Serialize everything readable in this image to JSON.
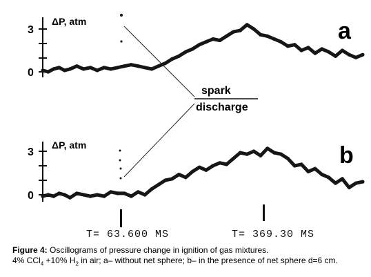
{
  "chart_data": [
    {
      "type": "line",
      "panel_label": "a",
      "ylabel": "ΔP, atm",
      "y_ticks": [
        "0",
        "3"
      ],
      "ylim": [
        -1,
        4
      ],
      "x": [
        0,
        8,
        16,
        24,
        32,
        40,
        50,
        60,
        70,
        80,
        90,
        100,
        110,
        120,
        130,
        140,
        150,
        160,
        170,
        180,
        190,
        200,
        210,
        220,
        230,
        240,
        250,
        260,
        270,
        280,
        290,
        300,
        310,
        320,
        330,
        340,
        350,
        360,
        370,
        380,
        390,
        400,
        410,
        420,
        430,
        440,
        450,
        460,
        470
      ],
      "values": [
        0.1,
        0.0,
        0.2,
        0.3,
        0.1,
        0.2,
        0.4,
        0.2,
        0.3,
        0.1,
        0.3,
        0.2,
        0.3,
        0.4,
        0.5,
        0.4,
        0.3,
        0.2,
        0.4,
        0.6,
        0.9,
        1.1,
        1.4,
        1.6,
        1.9,
        2.1,
        2.3,
        2.2,
        2.5,
        2.8,
        2.9,
        3.3,
        3.0,
        2.6,
        2.5,
        2.3,
        2.1,
        1.8,
        1.9,
        1.5,
        1.7,
        1.3,
        1.6,
        1.4,
        1.1,
        1.5,
        1.2,
        1.0,
        1.2
      ]
    },
    {
      "type": "line",
      "panel_label": "b",
      "ylabel": "ΔP, atm",
      "y_ticks": [
        "0",
        "3"
      ],
      "ylim": [
        -1,
        4
      ],
      "x": [
        0,
        8,
        16,
        24,
        32,
        40,
        50,
        60,
        70,
        80,
        90,
        100,
        110,
        120,
        130,
        140,
        150,
        160,
        170,
        180,
        190,
        200,
        210,
        220,
        230,
        240,
        250,
        260,
        270,
        280,
        290,
        300,
        310,
        320,
        330,
        340,
        350,
        360,
        370,
        380,
        390,
        400,
        410,
        420,
        430,
        440,
        450,
        460,
        470
      ],
      "values": [
        -0.1,
        0.0,
        -0.1,
        0.1,
        0.0,
        -0.2,
        0.1,
        0.0,
        -0.1,
        0.0,
        -0.1,
        0.2,
        0.1,
        0.1,
        -0.1,
        0.2,
        0.0,
        0.4,
        0.7,
        1.0,
        1.1,
        1.4,
        1.2,
        1.6,
        1.9,
        1.7,
        2.0,
        2.2,
        2.1,
        2.5,
        2.9,
        2.8,
        3.0,
        2.7,
        3.2,
        2.9,
        2.8,
        2.5,
        2.0,
        2.1,
        1.6,
        1.8,
        1.4,
        1.2,
        0.8,
        1.1,
        0.5,
        0.8,
        0.9
      ]
    }
  ],
  "annotation": {
    "line1": "spark",
    "line2": "discharge"
  },
  "time_marks": {
    "left": "T= 63.600 MS",
    "right": "T= 369.30 MS"
  },
  "caption": {
    "label": "Figure 4:",
    "line1": "Oscillograms of pressure change in ignition of gas mixtures.",
    "line2_a": "4% CCl",
    "sub1": "4",
    "line2_b": " +10% H",
    "sub2": "2",
    "line2_c": " in air; a– without net sphere; b– in the presence of net sphere d=6 cm."
  }
}
